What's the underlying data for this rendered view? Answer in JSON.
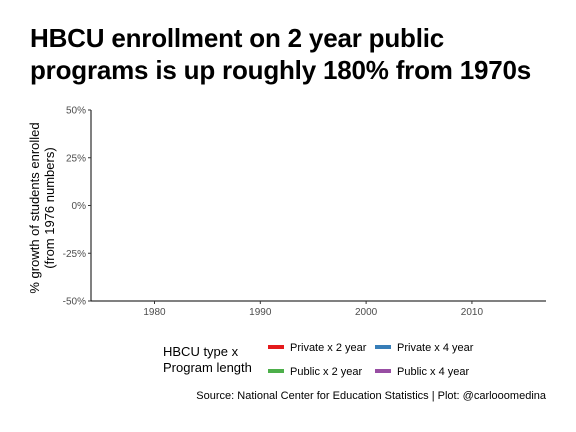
{
  "header": {
    "title_line1": "HBCU enrollment on 2 year public",
    "title_line2": "programs is up roughly 180% from 1970s"
  },
  "axes": {
    "ylabel_line1": "% growth of students enrolled",
    "ylabel_line2": "(from 1976 numbers)"
  },
  "legend": {
    "title_line1": "HBCU type x",
    "title_line2": "Program length",
    "items": [
      {
        "label": "Private x 2 year",
        "color": "#E41A1C"
      },
      {
        "label": "Private x 4 year",
        "color": "#377EB8"
      },
      {
        "label": "Public x 2 year",
        "color": "#4DAF4A"
      },
      {
        "label": "Public x 4 year",
        "color": "#984EA3"
      }
    ]
  },
  "caption": "Source: National Center for Education Statistics | Plot: @carlooomedina",
  "chart_data": {
    "type": "line",
    "title": "HBCU enrollment on 2 year public programs is up roughly 180% from 1970s",
    "xlabel": "",
    "ylabel": "% growth of students enrolled (from 1976 numbers)",
    "x_ticks": [
      1980,
      1990,
      2000,
      2010
    ],
    "y_ticks": [
      -0.5,
      -0.25,
      0,
      0.25,
      0.5
    ],
    "y_tick_labels": [
      "-50%",
      "-25%",
      "0%",
      "25%",
      "50%"
    ],
    "xlim": [
      1974,
      2017
    ],
    "ylim": [
      -0.5,
      0.5
    ],
    "grid": false,
    "legend_position": "bottom",
    "series": []
  }
}
